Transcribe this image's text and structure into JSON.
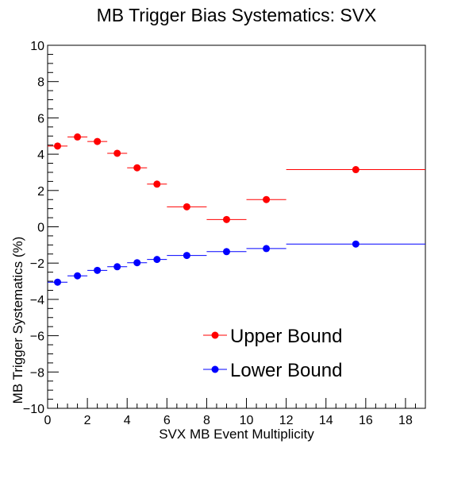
{
  "chart_data": {
    "type": "scatter",
    "title": "MB Trigger Bias Systematics: SVX",
    "xlabel": "SVX MB Event Multiplicity",
    "ylabel": "MB Trigger Systematics (%)",
    "xlim": [
      0,
      19
    ],
    "ylim": [
      -10,
      10
    ],
    "x_ticks": [
      0,
      2,
      4,
      6,
      8,
      10,
      12,
      14,
      16,
      18
    ],
    "y_ticks": [
      -10,
      -8,
      -6,
      -4,
      -2,
      0,
      2,
      4,
      6,
      8,
      10
    ],
    "x_tick_labels": [
      "0",
      "2",
      "4",
      "6",
      "8",
      "10",
      "12",
      "14",
      "16",
      "18"
    ],
    "y_tick_labels": [
      "−10",
      "−8",
      "−6",
      "−4",
      "−2",
      "0",
      "2",
      "4",
      "6",
      "8",
      "10"
    ],
    "grid": false,
    "legend_position": "bottom-right",
    "series": [
      {
        "name": "Upper Bound",
        "color": "#ff0000",
        "points": [
          {
            "x": 0.5,
            "y": 4.45,
            "xlow": 0,
            "xhigh": 1
          },
          {
            "x": 1.5,
            "y": 4.95,
            "xlow": 1,
            "xhigh": 2
          },
          {
            "x": 2.5,
            "y": 4.7,
            "xlow": 2,
            "xhigh": 3
          },
          {
            "x": 3.5,
            "y": 4.05,
            "xlow": 3,
            "xhigh": 4
          },
          {
            "x": 4.5,
            "y": 3.25,
            "xlow": 4,
            "xhigh": 5
          },
          {
            "x": 5.5,
            "y": 2.35,
            "xlow": 5,
            "xhigh": 6
          },
          {
            "x": 7.0,
            "y": 1.1,
            "xlow": 6,
            "xhigh": 8
          },
          {
            "x": 9.0,
            "y": 0.4,
            "xlow": 8,
            "xhigh": 10
          },
          {
            "x": 11.0,
            "y": 1.5,
            "xlow": 10,
            "xhigh": 12
          },
          {
            "x": 15.5,
            "y": 3.15,
            "xlow": 12,
            "xhigh": 19
          }
        ]
      },
      {
        "name": "Lower Bound",
        "color": "#0000ff",
        "points": [
          {
            "x": 0.5,
            "y": -3.05,
            "xlow": 0,
            "xhigh": 1
          },
          {
            "x": 1.5,
            "y": -2.7,
            "xlow": 1,
            "xhigh": 2
          },
          {
            "x": 2.5,
            "y": -2.4,
            "xlow": 2,
            "xhigh": 3
          },
          {
            "x": 3.5,
            "y": -2.2,
            "xlow": 3,
            "xhigh": 4
          },
          {
            "x": 4.5,
            "y": -1.98,
            "xlow": 4,
            "xhigh": 5
          },
          {
            "x": 5.5,
            "y": -1.8,
            "xlow": 5,
            "xhigh": 6
          },
          {
            "x": 7.0,
            "y": -1.58,
            "xlow": 6,
            "xhigh": 8
          },
          {
            "x": 9.0,
            "y": -1.37,
            "xlow": 8,
            "xhigh": 10
          },
          {
            "x": 11.0,
            "y": -1.2,
            "xlow": 10,
            "xhigh": 12
          },
          {
            "x": 15.5,
            "y": -0.95,
            "xlow": 12,
            "xhigh": 19
          }
        ]
      }
    ]
  }
}
